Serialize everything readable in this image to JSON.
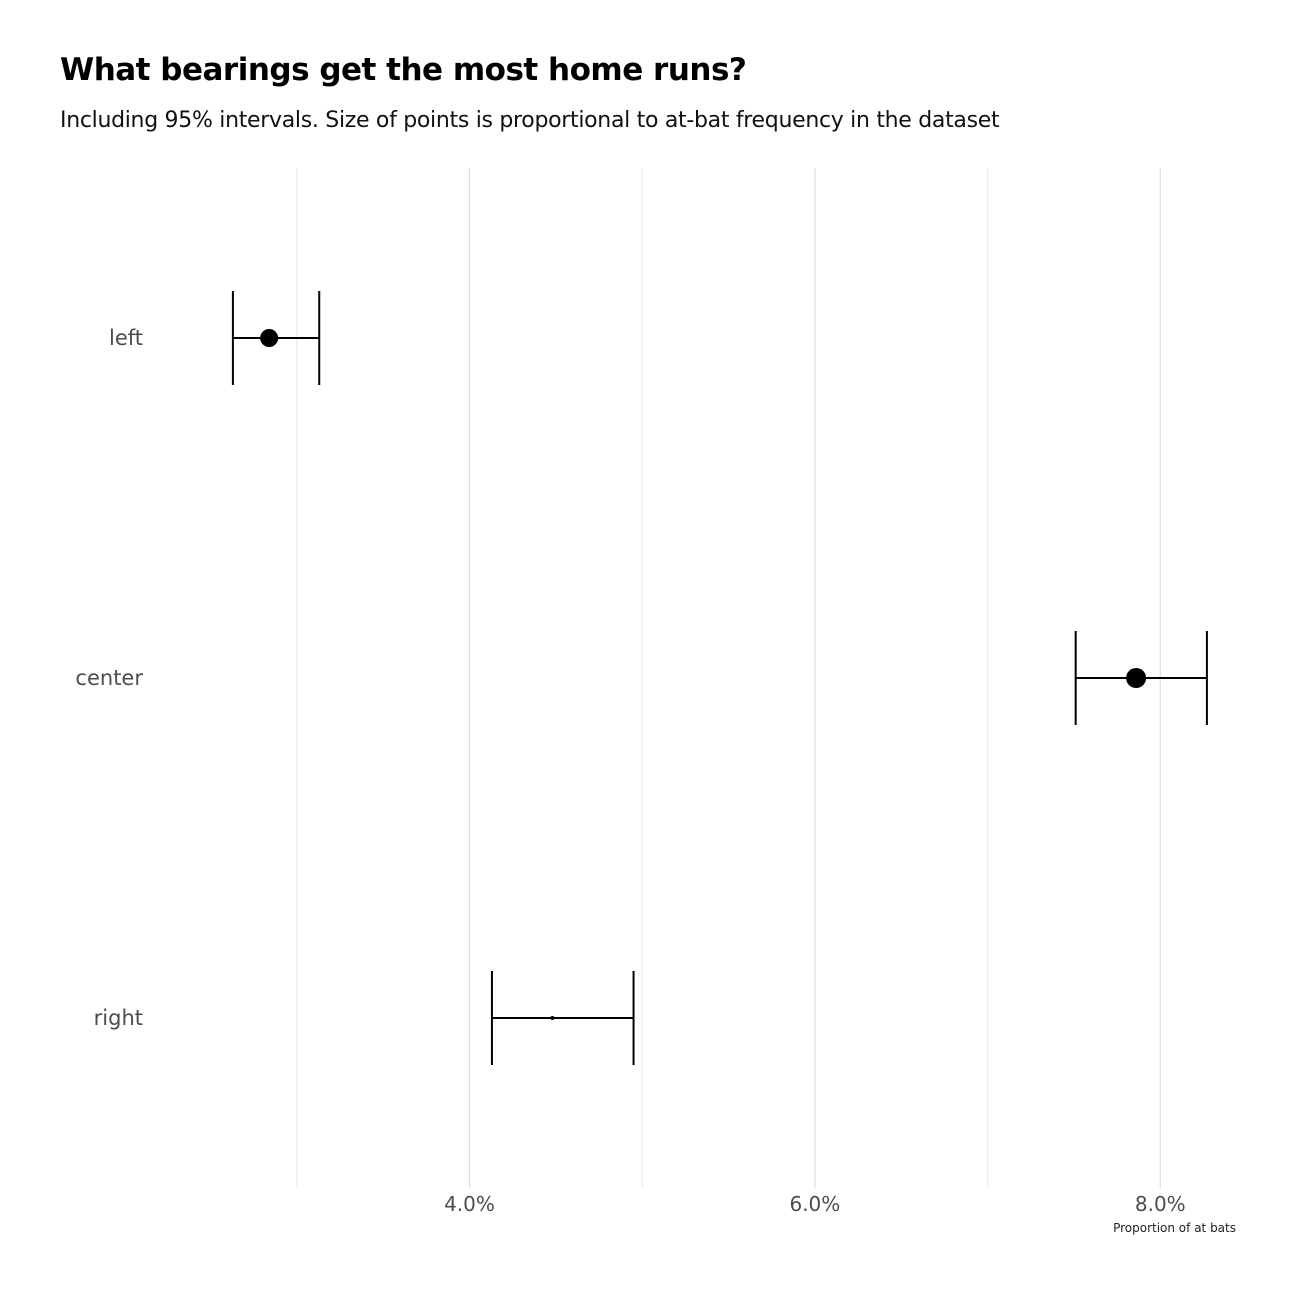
{
  "chart_data": {
    "type": "point-range",
    "title": "What bearings get the most home runs?",
    "subtitle": "Including 95% intervals. Size of points is proportional to at-bat frequency in the dataset",
    "xlabel": "Proportion of at bats",
    "ylabel": "",
    "xlim": [
      0.0215,
      0.0845
    ],
    "x_major_ticks": [
      0.04,
      0.06,
      0.08
    ],
    "x_minor_ticks": [
      0.03,
      0.05,
      0.07
    ],
    "x_tick_labels": [
      "4.0%",
      "6.0%",
      "8.0%"
    ],
    "categories": [
      "left",
      "center",
      "right"
    ],
    "estimates": [
      0.0284,
      0.0786,
      0.0448
    ],
    "lower": [
      0.0263,
      0.0751,
      0.0413
    ],
    "upper": [
      0.0313,
      0.0827,
      0.0495
    ],
    "point_sizes": [
      9,
      10,
      2
    ],
    "grid": true
  }
}
